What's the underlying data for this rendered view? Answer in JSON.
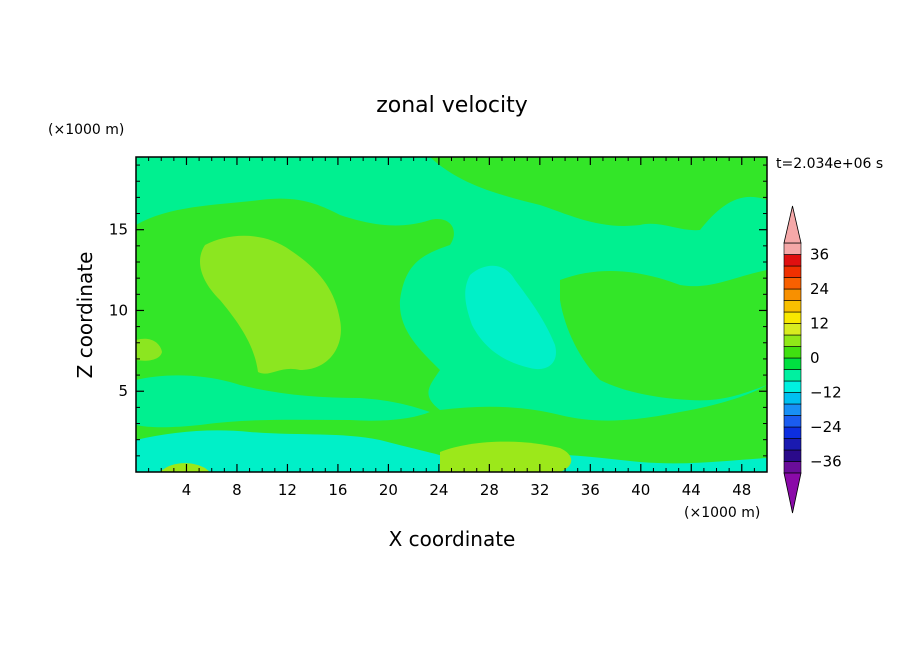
{
  "chart_data": {
    "type": "heatmap",
    "title": "zonal velocity",
    "xlabel": "X coordinate",
    "ylabel": "Z coordinate",
    "x_unit": "(×1000 m)",
    "y_unit": "(×1000 m)",
    "time_label": "t=2.034e+06 s",
    "xlim": [
      0,
      50
    ],
    "ylim": [
      0,
      19.5
    ],
    "x_ticks": [
      4,
      8,
      12,
      16,
      20,
      24,
      28,
      32,
      36,
      40,
      44,
      48
    ],
    "y_ticks": [
      5,
      10,
      15
    ],
    "colorbar": {
      "levels": [
        -40,
        -36,
        -32,
        -28,
        -24,
        -20,
        -16,
        -12,
        -8,
        -4,
        0,
        4,
        8,
        12,
        16,
        20,
        24,
        28,
        32,
        36,
        40
      ],
      "tick_labels": [
        36,
        24,
        12,
        0,
        -12,
        -24,
        -36
      ],
      "colors": [
        "#6a0d9a",
        "#2a0a8a",
        "#1a1ab0",
        "#0c2ee0",
        "#1a5cf0",
        "#1890f5",
        "#00c0f0",
        "#00f0e0",
        "#00f0a0",
        "#00e040",
        "#40e010",
        "#90e818",
        "#d8ec20",
        "#f8e800",
        "#f8c000",
        "#f89000",
        "#f86000",
        "#f03000",
        "#e01010",
        "#f5a8a8"
      ],
      "low_extend_color": "#8a0aa8",
      "high_extend_color": "#f5a8a8"
    },
    "field_regions": [
      {
        "name": "background",
        "value": -2,
        "color": "#00f090"
      },
      {
        "name": "upper-left-band",
        "value": 1,
        "color": "#33e628"
      },
      {
        "name": "left-blob",
        "value": 6,
        "color": "#8ce620"
      },
      {
        "name": "right-band",
        "value": 1,
        "color": "#33e628"
      },
      {
        "name": "center-jet",
        "value": -6,
        "color": "#00f0c8"
      },
      {
        "name": "near-surface",
        "value": 1,
        "color": "#33e628"
      },
      {
        "name": "surface-cyan",
        "value": -6,
        "color": "#00f0c8"
      },
      {
        "name": "surface-yellow",
        "value": 5,
        "color": "#9ce81a"
      }
    ]
  }
}
